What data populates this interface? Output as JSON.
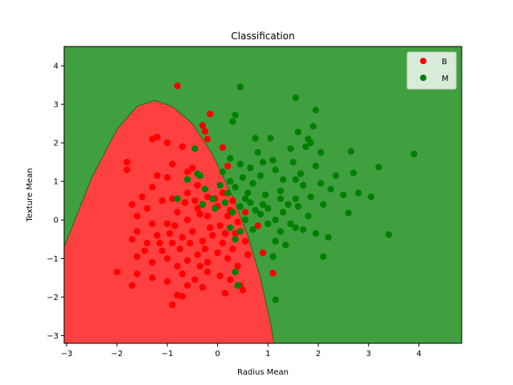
{
  "chart_data": {
    "type": "scatter",
    "title": "Classification",
    "xlabel": "Radius Mean",
    "ylabel": "Texture Mean",
    "xlim": [
      -3.05,
      4.85
    ],
    "ylim": [
      -3.2,
      4.5
    ],
    "xticks": [
      -3,
      -2,
      -1,
      0,
      1,
      2,
      3,
      4
    ],
    "yticks": [
      -3,
      -2,
      -1,
      0,
      1,
      2,
      3,
      4
    ],
    "grid": false,
    "legend": {
      "placement": "top-right"
    },
    "decision_regions": [
      {
        "class": "B",
        "color": "#ff4040"
      },
      {
        "class": "M",
        "color": "#40a040"
      }
    ],
    "decision_boundary": {
      "x": [
        -3.05,
        -2.5,
        -2.0,
        -1.6,
        -1.25,
        -0.9,
        -0.5,
        -0.1,
        0.3,
        0.6,
        0.85,
        1.05,
        1.12
      ],
      "y": [
        -0.7,
        1.1,
        2.35,
        2.95,
        3.1,
        2.95,
        2.5,
        1.7,
        0.6,
        -0.4,
        -1.5,
        -2.65,
        -3.2
      ]
    },
    "series": [
      {
        "name": "B",
        "color": "#ff0000",
        "points": [
          [
            -0.8,
            3.48
          ],
          [
            -0.15,
            2.75
          ],
          [
            -0.3,
            2.45
          ],
          [
            -0.25,
            2.3
          ],
          [
            -1.2,
            2.15
          ],
          [
            -1.3,
            2.1
          ],
          [
            -0.2,
            2.1
          ],
          [
            -1.0,
            2.0
          ],
          [
            -0.7,
            1.9
          ],
          [
            0.1,
            1.88
          ],
          [
            -1.8,
            1.5
          ],
          [
            -1.8,
            1.3
          ],
          [
            -0.9,
            1.45
          ],
          [
            -0.5,
            1.35
          ],
          [
            0.2,
            1.4
          ],
          [
            -1.2,
            1.15
          ],
          [
            -1.0,
            1.1
          ],
          [
            -0.6,
            1.25
          ],
          [
            -1.3,
            0.85
          ],
          [
            -1.5,
            0.6
          ],
          [
            -1.7,
            0.4
          ],
          [
            -1.4,
            0.3
          ],
          [
            -1.6,
            0.1
          ],
          [
            -1.1,
            0.5
          ],
          [
            -0.9,
            0.55
          ],
          [
            -0.6,
            0.7
          ],
          [
            -0.4,
            0.9
          ],
          [
            -0.2,
            0.6
          ],
          [
            0.1,
            0.7
          ],
          [
            0.3,
            0.5
          ],
          [
            -1.3,
            -0.1
          ],
          [
            -1.6,
            -0.3
          ],
          [
            -1.2,
            -0.4
          ],
          [
            -1.0,
            -0.1
          ],
          [
            -0.8,
            0.2
          ],
          [
            -0.6,
            0.0
          ],
          [
            -0.4,
            0.3
          ],
          [
            -0.2,
            0.1
          ],
          [
            0.0,
            0.35
          ],
          [
            0.2,
            0.1
          ],
          [
            0.4,
            -0.05
          ],
          [
            0.55,
            0.2
          ],
          [
            -1.7,
            -0.5
          ],
          [
            -1.4,
            -0.6
          ],
          [
            -1.1,
            -0.8
          ],
          [
            -0.9,
            -0.6
          ],
          [
            -0.7,
            -0.45
          ],
          [
            -0.5,
            -0.3
          ],
          [
            -0.3,
            -0.55
          ],
          [
            -0.1,
            -0.4
          ],
          [
            0.1,
            -0.6
          ],
          [
            0.3,
            -0.75
          ],
          [
            0.55,
            -0.55
          ],
          [
            0.8,
            -0.15
          ],
          [
            -1.6,
            -0.95
          ],
          [
            -1.3,
            -1.1
          ],
          [
            -1.0,
            -1.0
          ],
          [
            -0.8,
            -1.2
          ],
          [
            -0.6,
            -1.05
          ],
          [
            -0.4,
            -0.9
          ],
          [
            -0.2,
            -1.1
          ],
          [
            0.0,
            -0.85
          ],
          [
            0.2,
            -1.0
          ],
          [
            0.4,
            -1.2
          ],
          [
            0.6,
            -0.9
          ],
          [
            0.9,
            -0.85
          ],
          [
            -2.0,
            -1.35
          ],
          [
            -1.6,
            -1.4
          ],
          [
            -1.3,
            -1.5
          ],
          [
            -1.0,
            -1.6
          ],
          [
            -0.7,
            -1.4
          ],
          [
            -0.45,
            -1.55
          ],
          [
            -0.2,
            -1.35
          ],
          [
            0.05,
            -1.45
          ],
          [
            0.25,
            -1.55
          ],
          [
            0.45,
            -1.7
          ],
          [
            0.5,
            -1.82
          ],
          [
            0.15,
            -1.9
          ],
          [
            -0.3,
            -1.75
          ],
          [
            -0.6,
            -1.7
          ],
          [
            -0.8,
            -1.95
          ],
          [
            -0.9,
            -2.2
          ],
          [
            -0.7,
            -1.98
          ],
          [
            -1.7,
            -1.7
          ],
          [
            1.1,
            -1.38
          ],
          [
            -0.35,
            0.15
          ],
          [
            -0.15,
            -0.2
          ],
          [
            0.05,
            -0.15
          ],
          [
            0.25,
            0.25
          ],
          [
            -0.55,
            -0.6
          ],
          [
            -0.75,
            -0.75
          ],
          [
            -0.95,
            -0.35
          ],
          [
            -1.15,
            -0.6
          ],
          [
            -0.45,
            0.5
          ],
          [
            -0.25,
            -0.75
          ],
          [
            0.35,
            -0.35
          ],
          [
            -0.05,
            0.55
          ],
          [
            -1.45,
            -0.8
          ],
          [
            -0.65,
            0.45
          ],
          [
            0.15,
            -0.35
          ],
          [
            -0.35,
            -1.2
          ],
          [
            -0.85,
            -0.15
          ]
        ]
      },
      {
        "name": "M",
        "color": "#008000",
        "points": [
          [
            0.45,
            3.45
          ],
          [
            1.55,
            3.17
          ],
          [
            0.35,
            2.72
          ],
          [
            0.3,
            2.55
          ],
          [
            1.95,
            2.85
          ],
          [
            1.9,
            2.43
          ],
          [
            1.6,
            2.28
          ],
          [
            0.75,
            2.12
          ],
          [
            1.05,
            2.12
          ],
          [
            1.8,
            2.1
          ],
          [
            1.75,
            1.9
          ],
          [
            1.85,
            2.0
          ],
          [
            1.45,
            1.85
          ],
          [
            2.05,
            1.75
          ],
          [
            2.65,
            1.78
          ],
          [
            0.8,
            1.75
          ],
          [
            -0.45,
            1.85
          ],
          [
            1.1,
            1.55
          ],
          [
            1.5,
            1.5
          ],
          [
            0.9,
            1.5
          ],
          [
            0.65,
            1.35
          ],
          [
            0.45,
            1.45
          ],
          [
            0.25,
            1.6
          ],
          [
            1.95,
            1.4
          ],
          [
            1.65,
            1.2
          ],
          [
            2.35,
            1.15
          ],
          [
            2.7,
            1.22
          ],
          [
            3.2,
            1.37
          ],
          [
            3.9,
            1.71
          ],
          [
            1.15,
            1.3
          ],
          [
            0.85,
            1.15
          ],
          [
            -0.35,
            1.15
          ],
          [
            -0.4,
            1.2
          ],
          [
            0.25,
            1.0
          ],
          [
            0.5,
            1.1
          ],
          [
            0.7,
            0.95
          ],
          [
            1.3,
            1.05
          ],
          [
            1.55,
            1.05
          ],
          [
            1.7,
            0.9
          ],
          [
            2.05,
            0.95
          ],
          [
            2.25,
            0.8
          ],
          [
            2.5,
            0.65
          ],
          [
            2.8,
            0.7
          ],
          [
            3.05,
            0.6
          ],
          [
            -0.25,
            0.8
          ],
          [
            0.05,
            0.9
          ],
          [
            0.35,
            0.85
          ],
          [
            0.6,
            0.7
          ],
          [
            0.95,
            0.65
          ],
          [
            1.25,
            0.75
          ],
          [
            1.55,
            0.55
          ],
          [
            1.85,
            0.6
          ],
          [
            2.1,
            0.4
          ],
          [
            2.6,
            0.18
          ],
          [
            -0.1,
            0.55
          ],
          [
            0.15,
            0.45
          ],
          [
            0.45,
            0.35
          ],
          [
            0.75,
            0.25
          ],
          [
            1.0,
            0.3
          ],
          [
            1.3,
            0.2
          ],
          [
            1.6,
            0.35
          ],
          [
            1.8,
            0.1
          ],
          [
            -0.3,
            0.4
          ],
          [
            0.3,
            0.2
          ],
          [
            0.55,
            0.0
          ],
          [
            0.85,
            0.15
          ],
          [
            1.15,
            0.0
          ],
          [
            1.45,
            -0.1
          ],
          [
            1.7,
            -0.25
          ],
          [
            0.25,
            -0.2
          ],
          [
            0.45,
            -0.3
          ],
          [
            0.7,
            -0.25
          ],
          [
            1.25,
            -0.3
          ],
          [
            1.55,
            -0.2
          ],
          [
            1.95,
            -0.35
          ],
          [
            2.2,
            -0.45
          ],
          [
            0.35,
            -0.5
          ],
          [
            1.15,
            -0.55
          ],
          [
            1.35,
            -0.65
          ],
          [
            1.1,
            -0.95
          ],
          [
            2.1,
            -0.95
          ],
          [
            0.35,
            -1.35
          ],
          [
            0.4,
            -1.7
          ],
          [
            1.15,
            -2.07
          ],
          [
            -0.8,
            0.55
          ],
          [
            -0.6,
            1.05
          ],
          [
            0.1,
            1.25
          ],
          [
            0.65,
            0.45
          ],
          [
            1.4,
            0.4
          ],
          [
            1.0,
            -0.1
          ],
          [
            0.55,
            0.55
          ],
          [
            -0.05,
            0.3
          ],
          [
            0.2,
            0.7
          ],
          [
            3.4,
            -0.38
          ],
          [
            1.25,
            0.55
          ],
          [
            0.9,
            0.4
          ]
        ]
      }
    ]
  }
}
